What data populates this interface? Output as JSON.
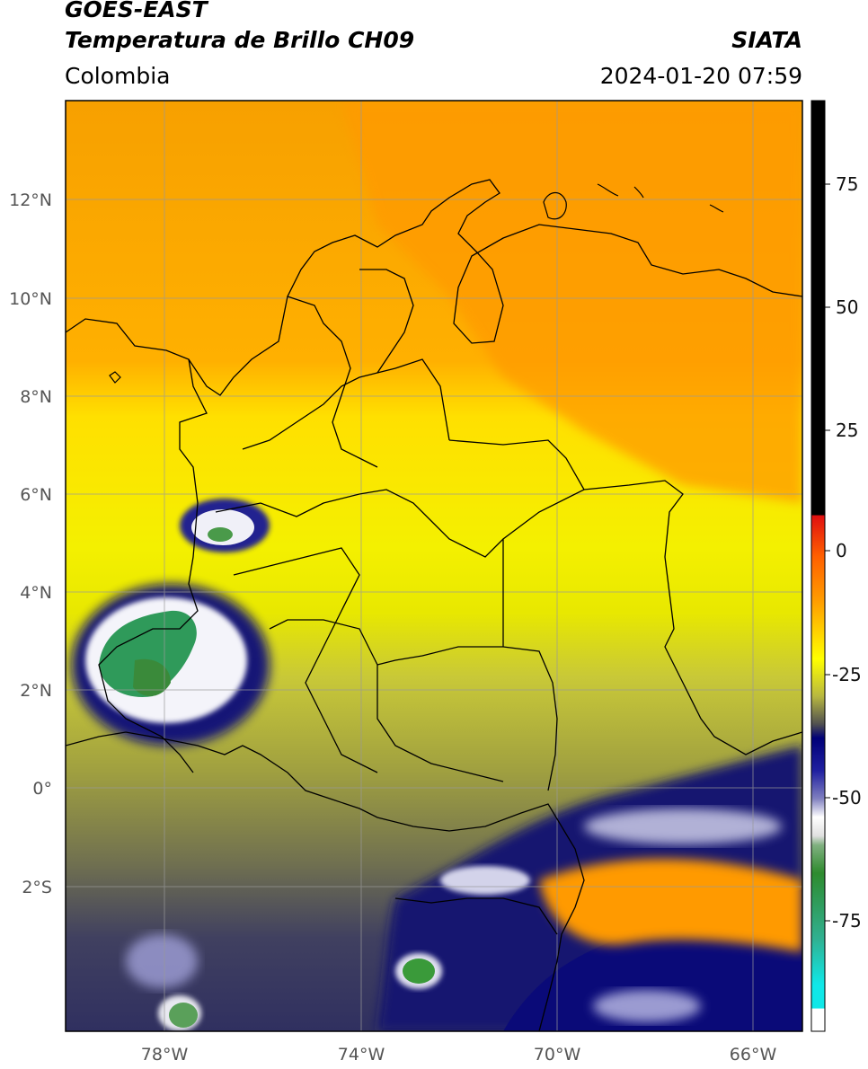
{
  "header": {
    "title_line1": "GOES-EAST",
    "title_line2": "Temperatura de Brillo CH09",
    "region": "Colombia",
    "agency": "SIATA",
    "timestamp": "2024-01-20 07:59"
  },
  "map": {
    "extent": {
      "lon_min": -80.0,
      "lon_max": -65.0,
      "lat_min": -5.0,
      "lat_max": 14.0
    },
    "lon_ticks": [
      -78,
      -74,
      -70,
      -66
    ],
    "lon_labels": [
      "78°W",
      "74°W",
      "70°W",
      "66°W"
    ],
    "lat_ticks": [
      12,
      10,
      8,
      6,
      4,
      2,
      0,
      -2
    ],
    "lat_labels": [
      "12°N",
      "10°N",
      "8°N",
      "6°N",
      "4°N",
      "2°N",
      "0°",
      "2°S"
    ],
    "grid": true
  },
  "colorbar": {
    "range": [
      -95,
      90
    ],
    "ticks": [
      75,
      50,
      25,
      0,
      -25,
      -50,
      -75
    ],
    "tick_labels": [
      "75",
      "50",
      "25",
      "0",
      "-25",
      "-50",
      "-75"
    ],
    "colors": {
      "black": "#000000",
      "red": "#e01010",
      "orange": "#ff9a00",
      "yellow": "#ffff00",
      "olive": "#b8b840",
      "gray": "#505050",
      "navy": "#000078",
      "white": "#ffffff",
      "green": "#2e8b2e",
      "cyan": "#10e8e8"
    }
  }
}
